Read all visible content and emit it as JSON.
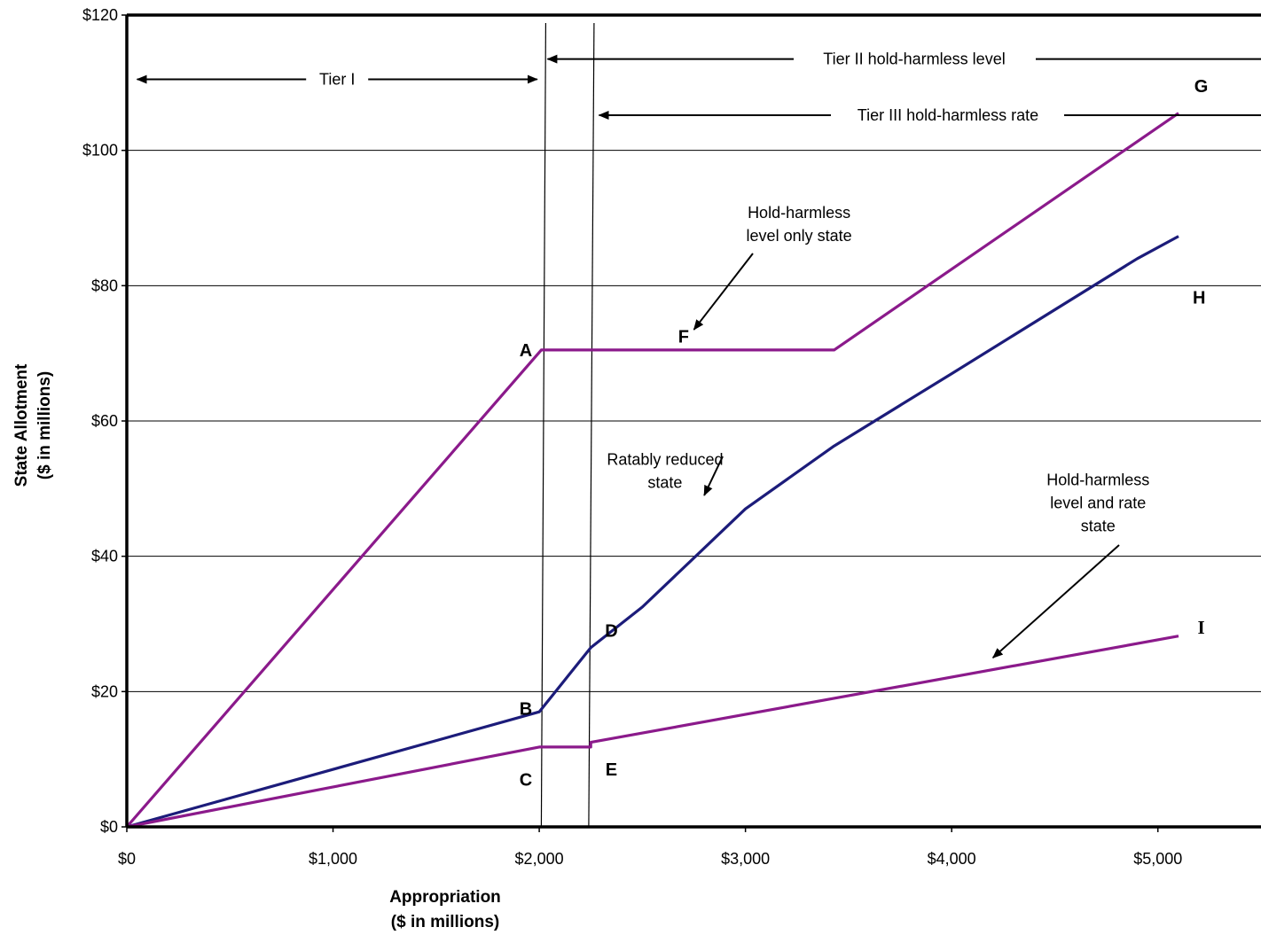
{
  "chart_data": {
    "type": "line",
    "title": "",
    "xlabel": [
      "Appropriation",
      "($ in millions)"
    ],
    "ylabel": [
      "State Allotment",
      "($ in millions)"
    ],
    "xlim": [
      0,
      5500
    ],
    "ylim": [
      0,
      120
    ],
    "x_ticks": [
      0,
      1000,
      2000,
      3000,
      4000,
      5000
    ],
    "x_tick_labels": [
      "$0",
      "$1,000",
      "$2,000",
      "$3,000",
      "$4,000",
      "$5,000"
    ],
    "y_ticks": [
      0,
      20,
      40,
      60,
      80,
      100,
      120
    ],
    "y_tick_labels": [
      "$0",
      "$20",
      "$40",
      "$60",
      "$80",
      "$100",
      "$120"
    ],
    "grid": "horizontal",
    "legend": "none",
    "colors": {
      "magenta": "#8B1A8B",
      "navy": "#1C1C7A",
      "grid": "#000000"
    },
    "series": [
      {
        "color": "magenta",
        "x": [
          0,
          2010,
          3430,
          5100
        ],
        "y": [
          0,
          70.5,
          70.5,
          105.5
        ]
      },
      {
        "color": "navy",
        "x": [
          0,
          2000,
          2250,
          2500,
          3000,
          3430,
          4000,
          4900,
          5100
        ],
        "y": [
          0,
          17,
          26.5,
          32.5,
          47,
          56.3,
          67,
          84,
          87.3
        ]
      },
      {
        "color": "magenta",
        "x": [
          0,
          2000,
          2250,
          2250,
          5100
        ],
        "y": [
          0,
          11.8,
          11.8,
          12.5,
          28.2
        ]
      }
    ],
    "vertical_lines": [
      2010,
      2240
    ],
    "range_labels": [
      {
        "text": "Tier I",
        "x_from": 50,
        "x_to": 1990,
        "y": 110.5
      },
      {
        "text": "Tier II hold-harmless level",
        "x_from": 2040,
        "y": 113.5
      },
      {
        "text": "Tier III hold-harmless rate",
        "x_from": 2290,
        "y": 105.2
      }
    ],
    "annotations": [
      {
        "lines": [
          "Hold-harmless",
          "level only state"
        ],
        "x": 3260,
        "y": 90,
        "arrow_to": [
          2750,
          73.5
        ]
      },
      {
        "lines": [
          "Ratably reduced",
          "state"
        ],
        "x": 2610,
        "y": 53.5,
        "arrow_to": [
          2800,
          49
        ]
      },
      {
        "lines": [
          "Hold-harmless",
          "level and rate",
          "state"
        ],
        "x": 4710,
        "y": 50.5,
        "arrow_to": [
          4200,
          25
        ]
      }
    ],
    "point_labels": [
      {
        "text": "A",
        "x": 1935,
        "y": 70.5
      },
      {
        "text": "B",
        "x": 1935,
        "y": 17.5
      },
      {
        "text": "C",
        "x": 1935,
        "y": 7
      },
      {
        "text": "D",
        "x": 2350,
        "y": 29
      },
      {
        "text": "E",
        "x": 2350,
        "y": 8.5
      },
      {
        "text": "F",
        "x": 2700,
        "y": 72.5
      },
      {
        "text": "G",
        "x": 5210,
        "y": 109.5
      },
      {
        "text": "H",
        "x": 5200,
        "y": 78.3
      },
      {
        "text": "I",
        "x": 5210,
        "y": 29.5,
        "serif": true
      }
    ]
  }
}
